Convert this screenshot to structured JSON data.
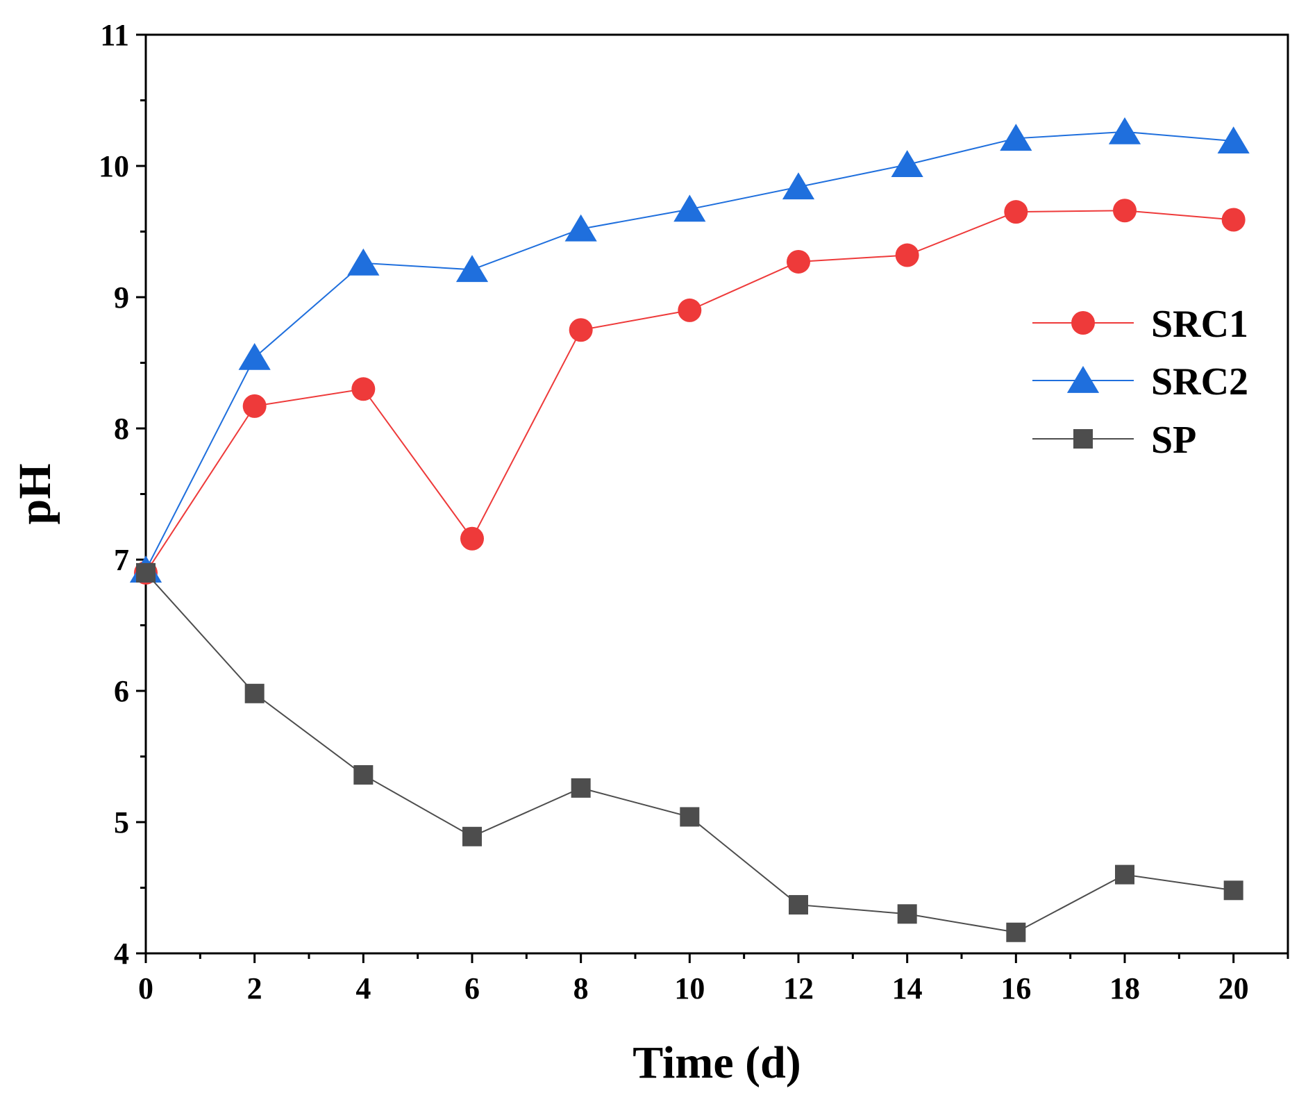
{
  "chart_data": {
    "type": "line",
    "xlabel": "Time (d)",
    "ylabel": "pH",
    "xlim": [
      0,
      21
    ],
    "ylim": [
      4,
      11
    ],
    "xticks": [
      0,
      2,
      4,
      6,
      8,
      10,
      12,
      14,
      16,
      18,
      20
    ],
    "yticks": [
      4,
      5,
      6,
      7,
      8,
      9,
      10,
      11
    ],
    "grid": false,
    "legend_position": "right",
    "x": [
      0,
      2,
      4,
      6,
      8,
      10,
      12,
      14,
      16,
      18,
      20
    ],
    "series": [
      {
        "name": "SRC1",
        "color": "#ee3a3a",
        "marker": "circle",
        "values": [
          6.9,
          8.17,
          8.3,
          7.16,
          8.75,
          8.9,
          9.27,
          9.32,
          9.65,
          9.66,
          9.59
        ]
      },
      {
        "name": "SRC2",
        "color": "#1f6fdd",
        "marker": "triangle",
        "values": [
          6.92,
          8.54,
          9.26,
          9.21,
          9.52,
          9.67,
          9.84,
          10.01,
          10.21,
          10.26,
          10.19
        ]
      },
      {
        "name": "SP",
        "color": "#4d4d4d",
        "marker": "square",
        "values": [
          6.9,
          5.98,
          5.36,
          4.89,
          5.26,
          5.04,
          4.37,
          4.3,
          4.16,
          4.6,
          4.48
        ]
      }
    ]
  }
}
